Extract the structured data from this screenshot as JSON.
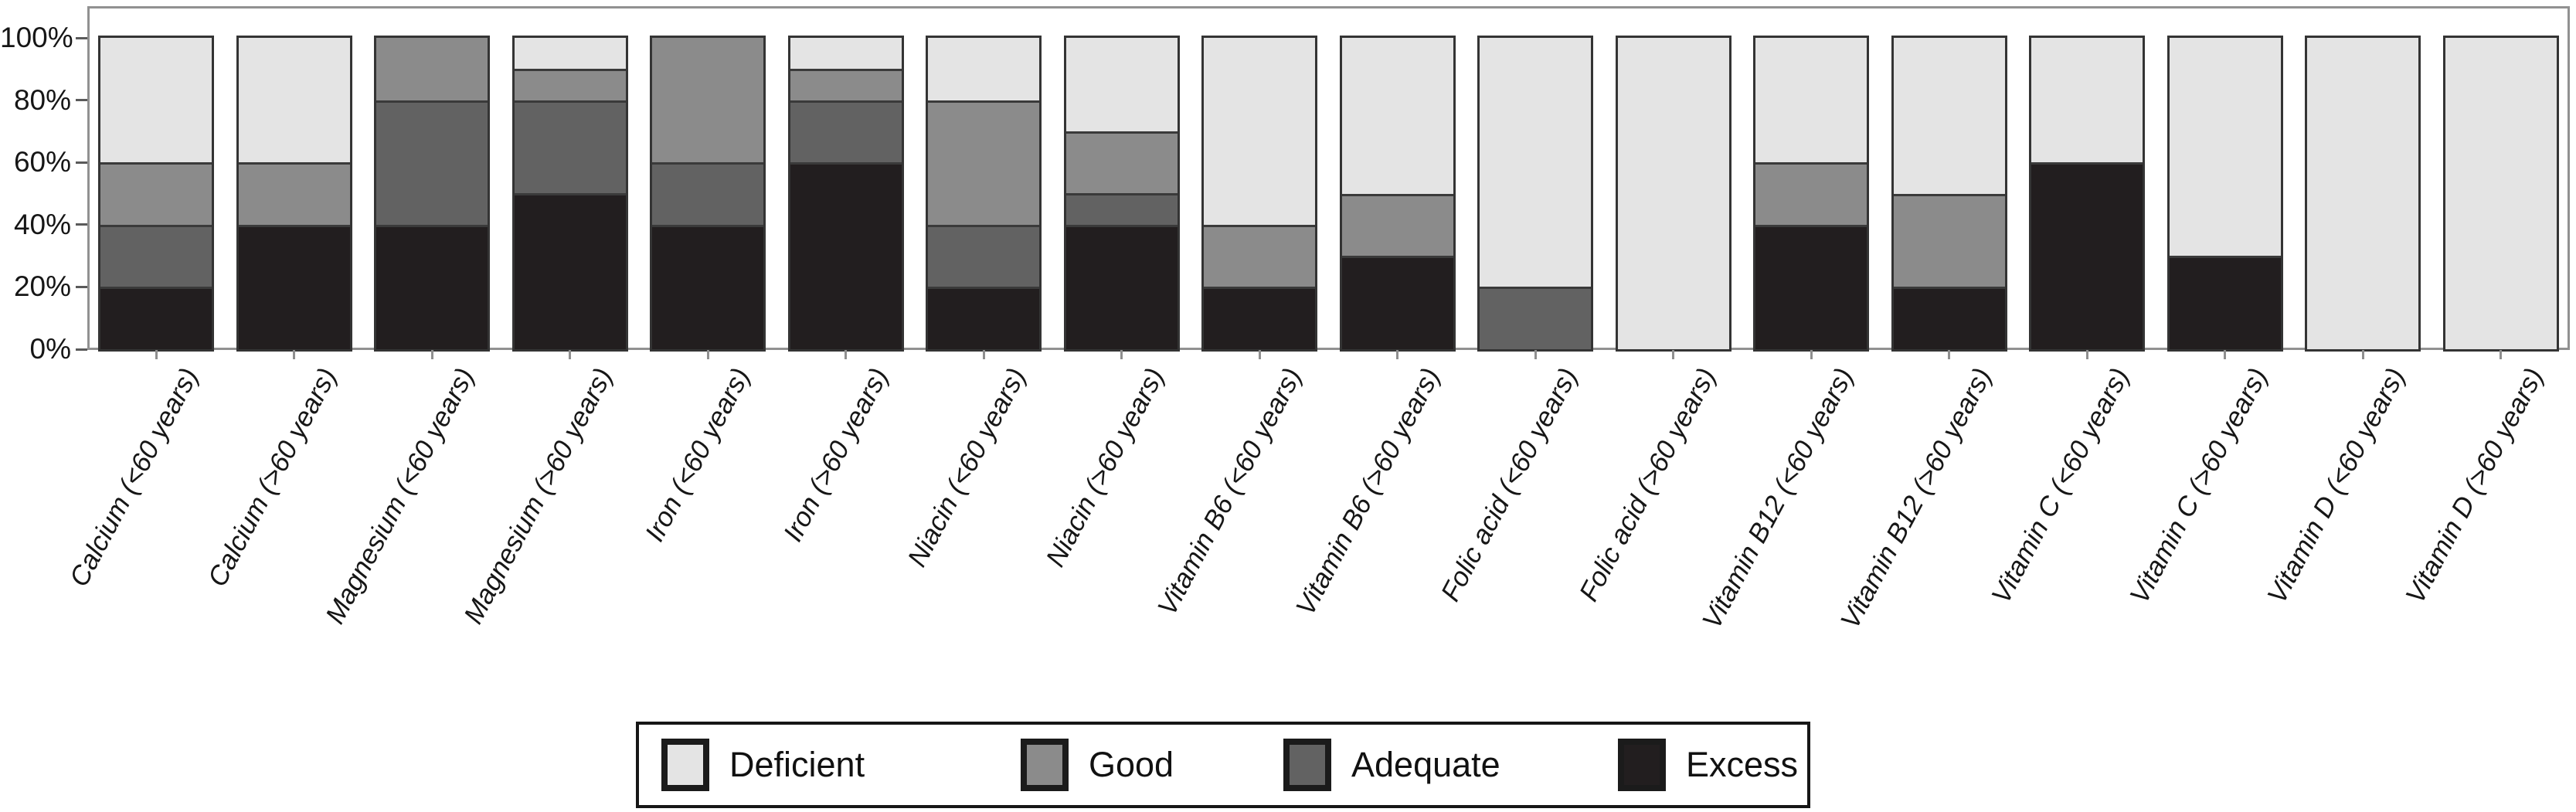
{
  "colors": {
    "deficient": "#e4e4e4",
    "good": "#8b8b8b",
    "adequate": "#626262",
    "excess": "#221e1f",
    "bar_border": "#343434",
    "plot_border": "#919191",
    "axis_text": "#161616"
  },
  "y_axis": {
    "tick_labels": [
      "100%",
      "80%",
      "60%",
      "40%",
      "20%",
      "0%"
    ],
    "tick_values": [
      100,
      80,
      60,
      40,
      20,
      0
    ]
  },
  "legend": {
    "items": [
      {
        "label": "Deficient",
        "color_key": "deficient"
      },
      {
        "label": "Good",
        "color_key": "good"
      },
      {
        "label": "Adequate",
        "color_key": "adequate"
      },
      {
        "label": "Excess",
        "color_key": "excess"
      }
    ]
  },
  "chart_data": {
    "type": "bar",
    "stacked": true,
    "percent": true,
    "ylim": [
      0,
      100
    ],
    "grid": false,
    "legend_position": "bottom-center",
    "stack_order_bottom_to_top": [
      "Excess",
      "Adequate",
      "Good",
      "Deficient"
    ],
    "categories": [
      "Calcium (<60 years)",
      "Calcium (>60 years)",
      "Magnesium (<60 years)",
      "Magnesium (>60 years)",
      "Iron (<60 years)",
      "Iron (>60 years)",
      "Niacin (<60 years)",
      "Niacin (>60 years)",
      "Vitamin B6 (<60 years)",
      "Vitamin B6 (>60 years)",
      "Folic acid (<60 years)",
      "Folic acid (>60 years)",
      "Vitamin B12 (<60 years)",
      "Vitamin B12 (>60 years)",
      "Vitamin C (<60 years)",
      "Vitamin C (>60 years)",
      "Vitamin D (<60 years)",
      "Vitamin D (>60 years)"
    ],
    "series": [
      {
        "name": "Excess",
        "color_key": "excess",
        "values": [
          20,
          40,
          40,
          50,
          40,
          60,
          20,
          40,
          20,
          30,
          0,
          0,
          40,
          20,
          60,
          30,
          0,
          0
        ]
      },
      {
        "name": "Adequate",
        "color_key": "adequate",
        "values": [
          20,
          0,
          40,
          30,
          20,
          20,
          20,
          10,
          0,
          0,
          20,
          0,
          0,
          0,
          0,
          0,
          0,
          0
        ]
      },
      {
        "name": "Good",
        "color_key": "good",
        "values": [
          20,
          20,
          20,
          10,
          40,
          10,
          40,
          20,
          20,
          20,
          0,
          0,
          20,
          30,
          0,
          0,
          0,
          0
        ]
      },
      {
        "name": "Deficient",
        "color_key": "deficient",
        "values": [
          40,
          40,
          0,
          10,
          0,
          10,
          20,
          30,
          60,
          50,
          80,
          100,
          40,
          50,
          40,
          70,
          100,
          100
        ]
      }
    ]
  }
}
